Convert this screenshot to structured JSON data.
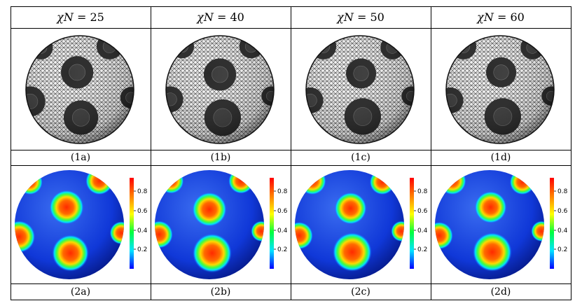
{
  "columns": [
    {
      "header_symbol": "χN",
      "header_value": "25",
      "mesh_caption": "(1a)",
      "color_caption": "(2a)"
    },
    {
      "header_symbol": "χN",
      "header_value": "40",
      "mesh_caption": "(1b)",
      "color_caption": "(2b)"
    },
    {
      "header_symbol": "χN",
      "header_value": "50",
      "mesh_caption": "(1c)",
      "color_caption": "(2c)"
    },
    {
      "header_symbol": "χN",
      "header_value": "60",
      "mesh_caption": "(1d)",
      "color_caption": "(2d)"
    }
  ],
  "colorbar": {
    "ticks": [
      "0.8",
      "0.6",
      "0.4",
      "0.2"
    ],
    "colors": [
      "#0000ff",
      "#00e5ff",
      "#00ff40",
      "#ffff00",
      "#ff7f00",
      "#ff0000"
    ]
  }
}
